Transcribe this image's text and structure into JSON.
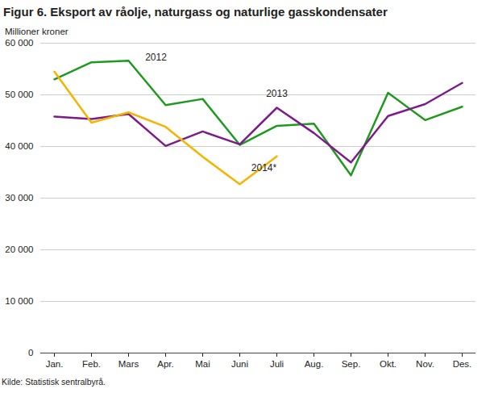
{
  "chart_data": {
    "type": "line",
    "title": "Figur 6. Eksport av råolje, naturgass og naturlige gasskondensater",
    "subtitle": "Millioner kroner",
    "caption": "Kilde: Statistisk sentralbyrå.",
    "categories": [
      "Jan.",
      "Feb.",
      "Mars",
      "Apr.",
      "Mai",
      "Juni",
      "Juli",
      "Aug.",
      "Sep.",
      "Okt.",
      "Nov.",
      "Des."
    ],
    "series": [
      {
        "name": "2012",
        "color": "#1f9a1f",
        "values": [
          53000,
          56300,
          56600,
          48000,
          49200,
          40300,
          44000,
          44400,
          34400,
          50400,
          45100,
          47700
        ]
      },
      {
        "name": "2013",
        "color": "#7d1b8c",
        "values": [
          45800,
          45300,
          46300,
          40100,
          42900,
          40400,
          47500,
          42600,
          36900,
          45900,
          48200,
          52300
        ]
      },
      {
        "name": "2014*",
        "color": "#f5b400",
        "values": [
          54500,
          44600,
          46600,
          43800,
          38000,
          32700,
          38100,
          null,
          null,
          null,
          null,
          null
        ]
      }
    ],
    "ylim": [
      0,
      60000
    ],
    "yticks": [
      0,
      {
        "value": 10000,
        "label": "10 000"
      },
      {
        "value": 20000,
        "label": "20 000"
      },
      {
        "value": 30000,
        "label": "30 000"
      },
      {
        "value": 40000,
        "label": "40 000"
      },
      {
        "value": 50000,
        "label": "50 000"
      },
      {
        "value": 60000,
        "label": "60 000"
      }
    ],
    "grid": true
  }
}
